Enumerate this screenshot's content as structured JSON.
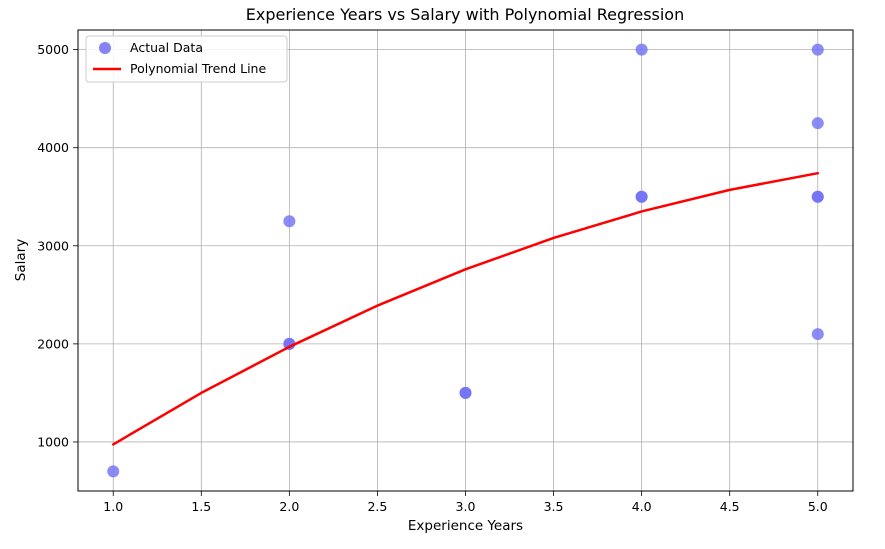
{
  "chart_data": {
    "type": "scatter",
    "title": "Experience Years vs Salary with Polynomial Regression",
    "xlabel": "Experience Years",
    "ylabel": "Salary",
    "xlim": [
      0.8,
      5.2
    ],
    "ylim": [
      500,
      5200
    ],
    "xticks": [
      1.0,
      1.5,
      2.0,
      2.5,
      3.0,
      3.5,
      4.0,
      4.5,
      5.0
    ],
    "xtick_labels": [
      "1.0",
      "1.5",
      "2.0",
      "2.5",
      "3.0",
      "3.5",
      "4.0",
      "4.5",
      "5.0"
    ],
    "yticks": [
      1000,
      2000,
      3000,
      4000,
      5000
    ],
    "ytick_labels": [
      "1000",
      "2000",
      "3000",
      "4000",
      "5000"
    ],
    "grid": true,
    "legend_position": "top-left",
    "series": [
      {
        "name": "Actual Data",
        "kind": "scatter",
        "color": "#6f6ff5",
        "points": [
          {
            "x": 1,
            "y": 700
          },
          {
            "x": 2,
            "y": 3250
          },
          {
            "x": 2,
            "y": 2000
          },
          {
            "x": 2,
            "y": 2000
          },
          {
            "x": 3,
            "y": 1500
          },
          {
            "x": 3,
            "y": 1500
          },
          {
            "x": 4,
            "y": 5000
          },
          {
            "x": 4,
            "y": 3500
          },
          {
            "x": 4,
            "y": 3500
          },
          {
            "x": 5,
            "y": 5000
          },
          {
            "x": 5,
            "y": 4250
          },
          {
            "x": 5,
            "y": 3500
          },
          {
            "x": 5,
            "y": 3500
          },
          {
            "x": 5,
            "y": 2100
          }
        ]
      },
      {
        "name": "Polynomial Trend Line",
        "kind": "line",
        "color": "#ff0000",
        "x": [
          1.0,
          1.5,
          2.0,
          2.5,
          3.0,
          3.5,
          4.0,
          4.5,
          5.0
        ],
        "y": [
          975,
          1500,
          1970,
          2390,
          2760,
          3080,
          3350,
          3570,
          3740
        ]
      }
    ]
  }
}
